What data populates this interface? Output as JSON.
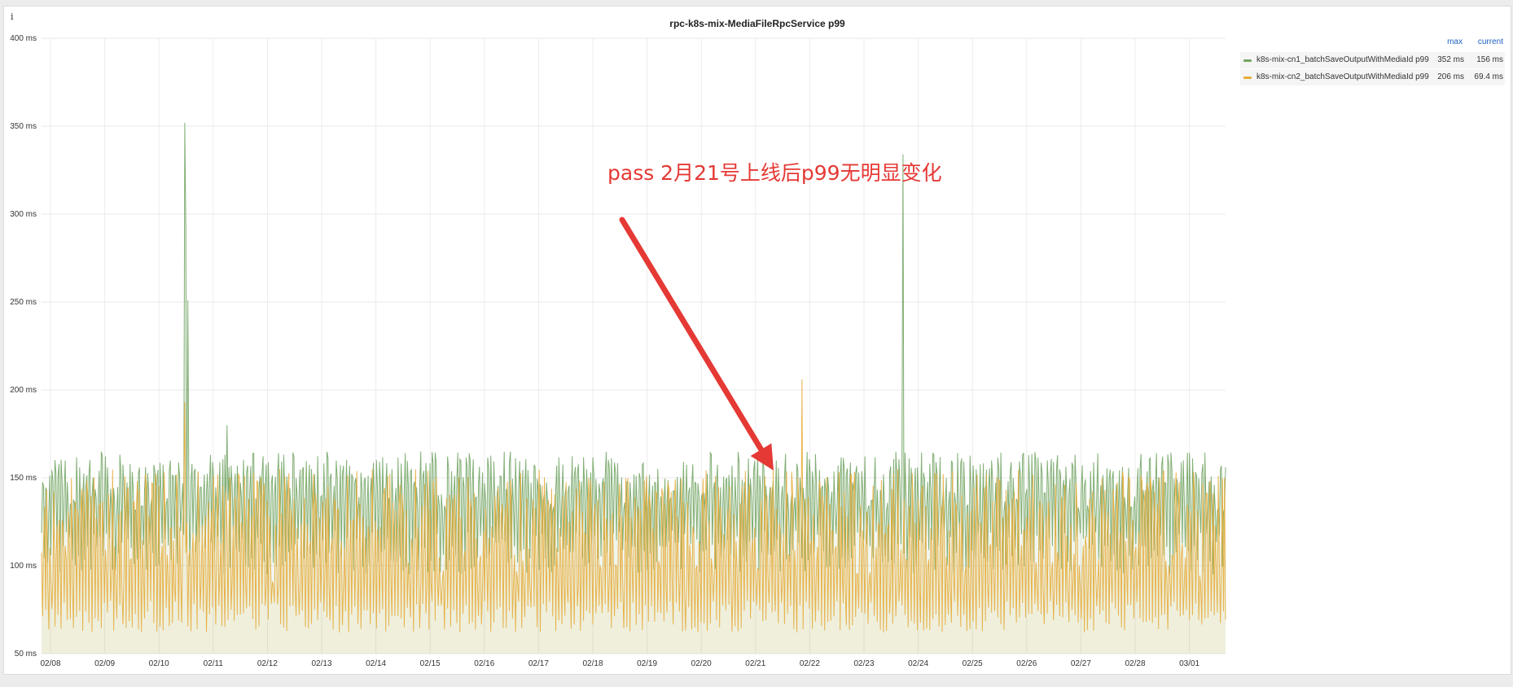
{
  "panel": {
    "title": "rpc-k8s-mix-MediaFileRpcService p99",
    "info_icon": "i"
  },
  "legend": {
    "max_header": "max",
    "current_header": "current",
    "items": [
      {
        "name": "k8s-mix-cn1_batchSaveOutputWithMediaId p99",
        "max": "352 ms",
        "current": "156 ms",
        "color": "#73a565"
      },
      {
        "name": "k8s-mix-cn2_batchSaveOutputWithMediaId p99",
        "max": "206 ms",
        "current": "69.4 ms",
        "color": "#e5ac3a"
      }
    ]
  },
  "annotation": {
    "text": "pass 2月21号上线后p99无明显变化",
    "color": "#e53935"
  },
  "chart_data": {
    "type": "line",
    "title": "rpc-k8s-mix-MediaFileRpcService p99",
    "ylim": [
      50,
      400
    ],
    "y_ticks": [
      "50 ms",
      "100 ms",
      "150 ms",
      "200 ms",
      "250 ms",
      "300 ms",
      "350 ms",
      "400 ms"
    ],
    "x_ticks": [
      "02/08",
      "02/09",
      "02/10",
      "02/11",
      "02/12",
      "02/13",
      "02/14",
      "02/15",
      "02/16",
      "02/17",
      "02/18",
      "02/19",
      "02/20",
      "02/21",
      "02/22",
      "02/23",
      "02/24",
      "02/25",
      "02/26",
      "02/27",
      "02/28",
      "03/01"
    ],
    "grid": true,
    "legend_position": "right",
    "series": [
      {
        "name": "k8s-mix-cn1_batchSaveOutputWithMediaId p99",
        "color": "#73a565",
        "max": 352,
        "current": 156,
        "typical_range": [
          95,
          165
        ],
        "spikes": [
          {
            "day": "02/10",
            "value": 352
          },
          {
            "day": "02/10",
            "value": 293
          },
          {
            "day": "02/10",
            "value": 251
          },
          {
            "day": "02/11",
            "value": 180
          },
          {
            "day": "02/23",
            "value": 334
          }
        ]
      },
      {
        "name": "k8s-mix-cn2_batchSaveOutputWithMediaId p99",
        "color": "#e5ac3a",
        "max": 206,
        "current": 69.4,
        "typical_range": [
          62,
          155
        ],
        "spikes": [
          {
            "day": "02/10",
            "value": 193
          },
          {
            "day": "02/21",
            "value": 206
          }
        ]
      }
    ]
  }
}
